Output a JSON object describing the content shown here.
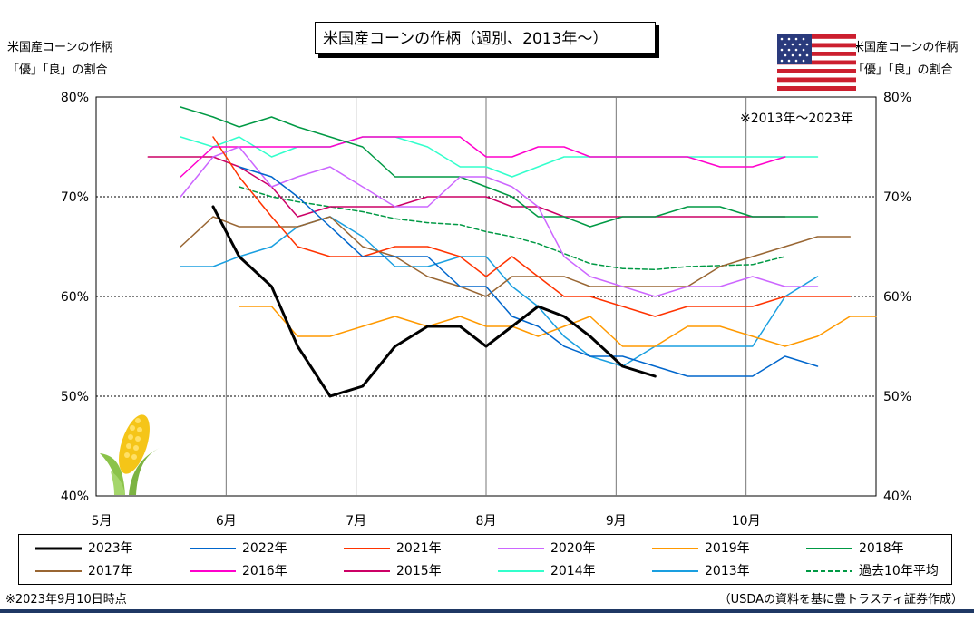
{
  "title": "米国産コーンの作柄（週別、2013年～）",
  "left_axis_label": [
    "米国産コーンの作柄",
    "「優」「良」の割合"
  ],
  "right_axis_label": [
    "米国産コーンの作柄",
    "「優」「良」の割合"
  ],
  "note_top_right": "※2013年～2023年",
  "footnote_left": "※2023年9月10日時点",
  "footnote_right": "（USDAの資料を基に豊トラスティ証券作成）",
  "icons": {
    "flag": "us-flag-icon",
    "corn": "corn-icon"
  },
  "chart_data": {
    "type": "line",
    "x_axis": {
      "months": [
        "5月",
        "6月",
        "7月",
        "8月",
        "9月",
        "10月"
      ],
      "range_months": [
        5,
        11
      ]
    },
    "y_axis": {
      "min": 40,
      "max": 80,
      "ticks": [
        "40%",
        "50%",
        "60%",
        "70%",
        "80%"
      ],
      "tick_values": [
        40,
        50,
        60,
        70,
        80
      ]
    },
    "series": [
      {
        "name": "2023年",
        "color": "#000000",
        "width": 3,
        "dash": "",
        "points": [
          [
            5.9,
            69
          ],
          [
            6.1,
            64
          ],
          [
            6.35,
            61
          ],
          [
            6.55,
            55
          ],
          [
            6.8,
            50
          ],
          [
            7.05,
            51
          ],
          [
            7.3,
            55
          ],
          [
            7.55,
            57
          ],
          [
            7.8,
            57
          ],
          [
            8.0,
            55
          ],
          [
            8.2,
            57
          ],
          [
            8.4,
            59
          ],
          [
            8.6,
            58
          ],
          [
            8.8,
            56
          ],
          [
            9.05,
            53
          ],
          [
            9.3,
            52
          ]
        ]
      },
      {
        "name": "2022年",
        "color": "#0066cc",
        "width": 1.5,
        "dash": "",
        "points": [
          [
            6.1,
            73
          ],
          [
            6.35,
            72
          ],
          [
            6.55,
            70
          ],
          [
            6.8,
            67
          ],
          [
            7.05,
            64
          ],
          [
            7.3,
            64
          ],
          [
            7.55,
            64
          ],
          [
            7.8,
            61
          ],
          [
            8.0,
            61
          ],
          [
            8.2,
            58
          ],
          [
            8.4,
            57
          ],
          [
            8.6,
            55
          ],
          [
            8.8,
            54
          ],
          [
            9.05,
            54
          ],
          [
            9.3,
            53
          ],
          [
            9.55,
            52
          ],
          [
            9.8,
            52
          ],
          [
            10.05,
            52
          ],
          [
            10.3,
            54
          ],
          [
            10.55,
            53
          ]
        ]
      },
      {
        "name": "2021年",
        "color": "#ff3300",
        "width": 1.5,
        "dash": "",
        "points": [
          [
            5.9,
            76
          ],
          [
            6.1,
            72
          ],
          [
            6.35,
            68
          ],
          [
            6.55,
            65
          ],
          [
            6.8,
            64
          ],
          [
            7.05,
            64
          ],
          [
            7.3,
            65
          ],
          [
            7.55,
            65
          ],
          [
            7.8,
            64
          ],
          [
            8.0,
            62
          ],
          [
            8.2,
            64
          ],
          [
            8.4,
            62
          ],
          [
            8.6,
            60
          ],
          [
            8.8,
            60
          ],
          [
            9.05,
            59
          ],
          [
            9.3,
            58
          ],
          [
            9.55,
            59
          ],
          [
            9.8,
            59
          ],
          [
            10.05,
            59
          ],
          [
            10.3,
            60
          ],
          [
            10.55,
            60
          ],
          [
            10.8,
            60
          ]
        ]
      },
      {
        "name": "2020年",
        "color": "#cc66ff",
        "width": 1.5,
        "dash": "",
        "points": [
          [
            5.65,
            70
          ],
          [
            5.9,
            74
          ],
          [
            6.1,
            75
          ],
          [
            6.35,
            71
          ],
          [
            6.55,
            72
          ],
          [
            6.8,
            73
          ],
          [
            7.05,
            71
          ],
          [
            7.3,
            69
          ],
          [
            7.55,
            69
          ],
          [
            7.8,
            72
          ],
          [
            8.0,
            72
          ],
          [
            8.2,
            71
          ],
          [
            8.4,
            69
          ],
          [
            8.6,
            64
          ],
          [
            8.8,
            62
          ],
          [
            9.05,
            61
          ],
          [
            9.3,
            60
          ],
          [
            9.55,
            61
          ],
          [
            9.8,
            61
          ],
          [
            10.05,
            62
          ],
          [
            10.3,
            61
          ],
          [
            10.55,
            61
          ]
        ]
      },
      {
        "name": "2019年",
        "color": "#ff9900",
        "width": 1.5,
        "dash": "",
        "points": [
          [
            6.1,
            59
          ],
          [
            6.35,
            59
          ],
          [
            6.55,
            56
          ],
          [
            6.8,
            56
          ],
          [
            7.05,
            57
          ],
          [
            7.3,
            58
          ],
          [
            7.55,
            57
          ],
          [
            7.8,
            58
          ],
          [
            8.0,
            57
          ],
          [
            8.2,
            57
          ],
          [
            8.4,
            56
          ],
          [
            8.6,
            57
          ],
          [
            8.8,
            58
          ],
          [
            9.05,
            55
          ],
          [
            9.3,
            55
          ],
          [
            9.55,
            57
          ],
          [
            9.8,
            57
          ],
          [
            10.05,
            56
          ],
          [
            10.3,
            55
          ],
          [
            10.55,
            56
          ],
          [
            10.8,
            58
          ],
          [
            11.0,
            58
          ]
        ]
      },
      {
        "name": "2018年",
        "color": "#009944",
        "width": 1.5,
        "dash": "",
        "points": [
          [
            5.65,
            79
          ],
          [
            5.9,
            78
          ],
          [
            6.1,
            77
          ],
          [
            6.35,
            78
          ],
          [
            6.55,
            77
          ],
          [
            6.8,
            76
          ],
          [
            7.05,
            75
          ],
          [
            7.3,
            72
          ],
          [
            7.55,
            72
          ],
          [
            7.8,
            72
          ],
          [
            8.0,
            71
          ],
          [
            8.2,
            70
          ],
          [
            8.4,
            68
          ],
          [
            8.6,
            68
          ],
          [
            8.8,
            67
          ],
          [
            9.05,
            68
          ],
          [
            9.3,
            68
          ],
          [
            9.55,
            69
          ],
          [
            9.8,
            69
          ],
          [
            10.05,
            68
          ],
          [
            10.3,
            68
          ],
          [
            10.55,
            68
          ]
        ]
      },
      {
        "name": "2017年",
        "color": "#996633",
        "width": 1.5,
        "dash": "",
        "points": [
          [
            5.65,
            65
          ],
          [
            5.9,
            68
          ],
          [
            6.1,
            67
          ],
          [
            6.35,
            67
          ],
          [
            6.55,
            67
          ],
          [
            6.8,
            68
          ],
          [
            7.05,
            65
          ],
          [
            7.3,
            64
          ],
          [
            7.55,
            62
          ],
          [
            7.8,
            61
          ],
          [
            8.0,
            60
          ],
          [
            8.2,
            62
          ],
          [
            8.4,
            62
          ],
          [
            8.6,
            62
          ],
          [
            8.8,
            61
          ],
          [
            9.05,
            61
          ],
          [
            9.3,
            61
          ],
          [
            9.55,
            61
          ],
          [
            9.8,
            63
          ],
          [
            10.05,
            64
          ],
          [
            10.3,
            65
          ],
          [
            10.55,
            66
          ],
          [
            10.8,
            66
          ]
        ]
      },
      {
        "name": "2016年",
        "color": "#ff00cc",
        "width": 1.5,
        "dash": "",
        "points": [
          [
            5.65,
            72
          ],
          [
            5.9,
            75
          ],
          [
            6.1,
            75
          ],
          [
            6.35,
            75
          ],
          [
            6.55,
            75
          ],
          [
            6.8,
            75
          ],
          [
            7.05,
            76
          ],
          [
            7.3,
            76
          ],
          [
            7.55,
            76
          ],
          [
            7.8,
            76
          ],
          [
            8.0,
            74
          ],
          [
            8.2,
            74
          ],
          [
            8.4,
            75
          ],
          [
            8.6,
            75
          ],
          [
            8.8,
            74
          ],
          [
            9.05,
            74
          ],
          [
            9.3,
            74
          ],
          [
            9.55,
            74
          ],
          [
            9.8,
            73
          ],
          [
            10.05,
            73
          ],
          [
            10.3,
            74
          ]
        ]
      },
      {
        "name": "2015年",
        "color": "#cc0066",
        "width": 1.5,
        "dash": "",
        "points": [
          [
            5.4,
            74
          ],
          [
            5.65,
            74
          ],
          [
            5.9,
            74
          ],
          [
            6.1,
            73
          ],
          [
            6.35,
            71
          ],
          [
            6.55,
            68
          ],
          [
            6.8,
            69
          ],
          [
            7.05,
            69
          ],
          [
            7.3,
            69
          ],
          [
            7.55,
            70
          ],
          [
            7.8,
            70
          ],
          [
            8.0,
            70
          ],
          [
            8.2,
            69
          ],
          [
            8.4,
            69
          ],
          [
            8.6,
            68
          ],
          [
            8.8,
            68
          ],
          [
            9.05,
            68
          ],
          [
            9.3,
            68
          ],
          [
            9.55,
            68
          ],
          [
            9.8,
            68
          ],
          [
            10.05,
            68
          ],
          [
            10.3,
            68
          ]
        ]
      },
      {
        "name": "2014年",
        "color": "#33ffcc",
        "width": 1.5,
        "dash": "",
        "points": [
          [
            5.65,
            76
          ],
          [
            5.9,
            75
          ],
          [
            6.1,
            76
          ],
          [
            6.35,
            74
          ],
          [
            6.55,
            75
          ],
          [
            6.8,
            75
          ],
          [
            7.05,
            76
          ],
          [
            7.3,
            76
          ],
          [
            7.55,
            75
          ],
          [
            7.8,
            73
          ],
          [
            8.0,
            73
          ],
          [
            8.2,
            72
          ],
          [
            8.4,
            73
          ],
          [
            8.6,
            74
          ],
          [
            8.8,
            74
          ],
          [
            9.05,
            74
          ],
          [
            9.3,
            74
          ],
          [
            9.55,
            74
          ],
          [
            9.8,
            74
          ],
          [
            10.05,
            74
          ],
          [
            10.3,
            74
          ],
          [
            10.55,
            74
          ]
        ]
      },
      {
        "name": "2013年",
        "color": "#1a9fe0",
        "width": 1.5,
        "dash": "",
        "points": [
          [
            5.65,
            63
          ],
          [
            5.9,
            63
          ],
          [
            6.1,
            64
          ],
          [
            6.35,
            65
          ],
          [
            6.55,
            67
          ],
          [
            6.8,
            68
          ],
          [
            7.05,
            66
          ],
          [
            7.3,
            63
          ],
          [
            7.55,
            63
          ],
          [
            7.8,
            64
          ],
          [
            8.0,
            64
          ],
          [
            8.2,
            61
          ],
          [
            8.4,
            59
          ],
          [
            8.6,
            56
          ],
          [
            8.8,
            54
          ],
          [
            9.05,
            53
          ],
          [
            9.3,
            55
          ],
          [
            9.55,
            55
          ],
          [
            9.8,
            55
          ],
          [
            10.05,
            55
          ],
          [
            10.3,
            60
          ],
          [
            10.55,
            62
          ]
        ]
      },
      {
        "name": "過去10年平均",
        "color": "#009944",
        "width": 1.5,
        "dash": "5,3",
        "points": [
          [
            6.1,
            71
          ],
          [
            6.35,
            70
          ],
          [
            6.55,
            69.5
          ],
          [
            6.8,
            69
          ],
          [
            7.05,
            68.5
          ],
          [
            7.3,
            67.8
          ],
          [
            7.55,
            67.4
          ],
          [
            7.8,
            67.2
          ],
          [
            8.0,
            66.5
          ],
          [
            8.2,
            66
          ],
          [
            8.4,
            65.3
          ],
          [
            8.6,
            64.3
          ],
          [
            8.8,
            63.3
          ],
          [
            9.05,
            62.8
          ],
          [
            9.3,
            62.7
          ],
          [
            9.55,
            63
          ],
          [
            9.8,
            63.1
          ],
          [
            10.05,
            63.2
          ],
          [
            10.3,
            64
          ]
        ]
      }
    ]
  }
}
